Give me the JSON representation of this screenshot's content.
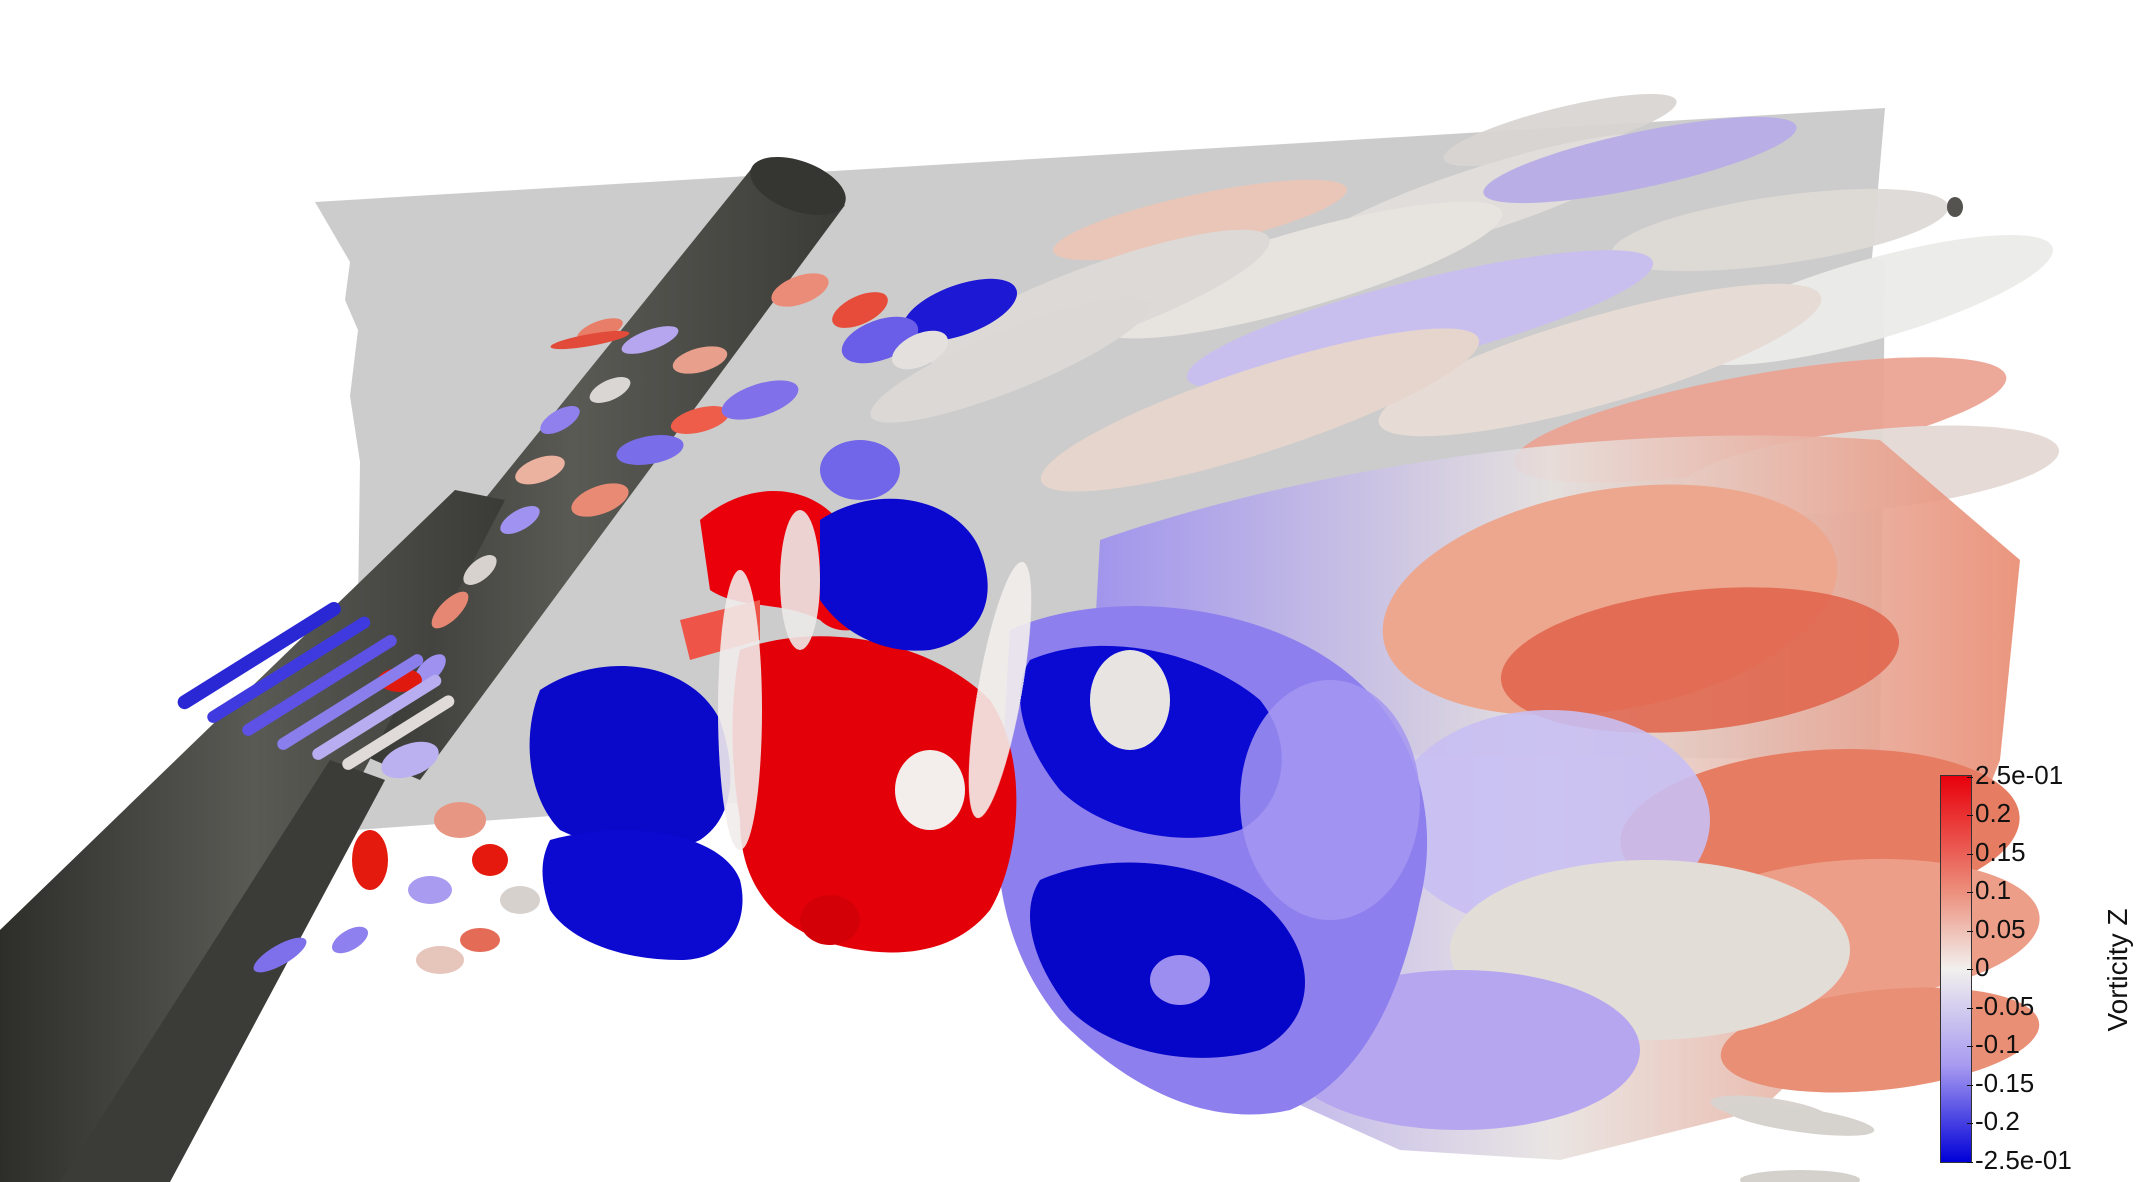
{
  "colorbar": {
    "title": "Vorticity Z",
    "ticks": [
      "2.5e-01",
      "0.2",
      "0.15",
      "0.1",
      "0.05",
      "0",
      "-0.05",
      "-0.1",
      "-0.15",
      "-0.2",
      "-2.5e-01"
    ],
    "range": [
      -0.25,
      0.25
    ],
    "colors": {
      "max": "#e8000b",
      "mid": "#f2f0ee",
      "min": "#0000d8"
    }
  },
  "scene": {
    "cylinder_color": "#4a4a46",
    "plane_color": "#c8c8c8",
    "background": "#ffffff"
  }
}
